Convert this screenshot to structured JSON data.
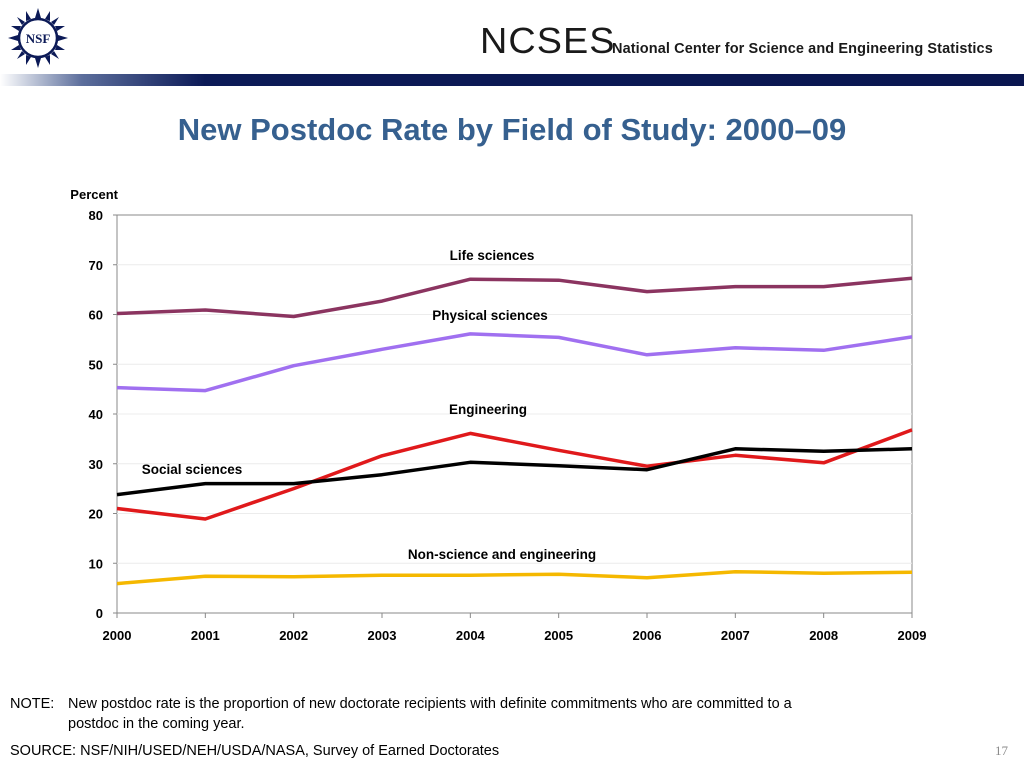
{
  "header": {
    "logo_text": "NSF",
    "org_acronym": "NCSES",
    "org_name": "National Center for Science and Engineering Statistics"
  },
  "title": "New Postdoc Rate by Field of Study: 2000–09",
  "note": {
    "prefix": "NOTE:",
    "line1": "New postdoc rate is the proportion of new doctorate recipients with definite commitments who are committed to a",
    "line2": "postdoc in the coming year."
  },
  "source": "SOURCE:  NSF/NIH/USED/NEH/USDA/NASA, Survey of Earned Doctorates",
  "slide_number": "17",
  "colors": {
    "title": "#36608f",
    "life_sciences": "#8b3460",
    "physical_sciences": "#a070f0",
    "engineering": "#e0191b",
    "social_sciences": "#000000",
    "non_science_engineering": "#f5b800",
    "header_bar": "#0c1a57"
  },
  "chart_data": {
    "type": "line",
    "title": "",
    "ylabel": "Percent",
    "xlabel": "",
    "x": [
      2000,
      2001,
      2002,
      2003,
      2004,
      2005,
      2006,
      2007,
      2008,
      2009
    ],
    "ylim": [
      0,
      80
    ],
    "yticks": [
      0,
      10,
      20,
      30,
      40,
      50,
      60,
      70,
      80
    ],
    "grid": true,
    "legend": "inline labels",
    "series": [
      {
        "name": "Life sciences",
        "color": "#8b3460",
        "values": [
          60.2,
          60.9,
          59.6,
          62.7,
          67.1,
          66.9,
          64.6,
          65.6,
          65.6,
          67.3
        ]
      },
      {
        "name": "Physical sciences",
        "color": "#a070f0",
        "values": [
          45.3,
          44.7,
          49.7,
          53.0,
          56.1,
          55.4,
          51.9,
          53.3,
          52.8,
          55.5
        ]
      },
      {
        "name": "Engineering",
        "color": "#e0191b",
        "values": [
          21.0,
          18.9,
          25.0,
          31.6,
          36.1,
          32.7,
          29.5,
          31.7,
          30.2,
          36.8
        ]
      },
      {
        "name": "Social sciences",
        "color": "#000000",
        "values": [
          23.8,
          26.0,
          26.0,
          27.8,
          30.3,
          29.6,
          28.8,
          33.0,
          32.5,
          33.0
        ]
      },
      {
        "name": "Non-science and engineering",
        "color": "#f5b800",
        "values": [
          5.9,
          7.4,
          7.3,
          7.6,
          7.6,
          7.8,
          7.1,
          8.3,
          8.0,
          8.2
        ]
      }
    ]
  }
}
